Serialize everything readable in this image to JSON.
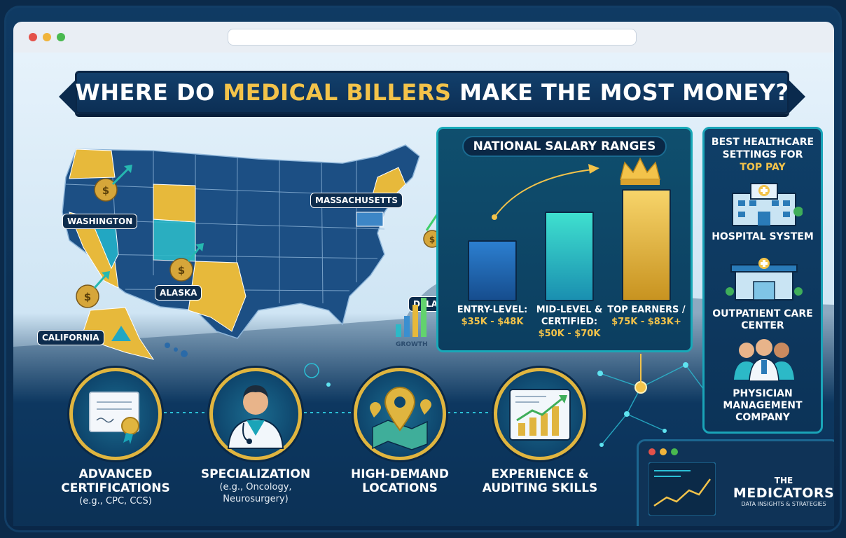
{
  "title": {
    "part1": "WHERE DO ",
    "highlight": "MEDICAL BILLERS",
    "part2": " MAKE THE MOST MONEY?"
  },
  "map": {
    "labels": {
      "washington": "WASHINGTON",
      "california": "CALIFORNIA",
      "alaska": "ALASKA",
      "massachusetts": "MASSACHUSETTS",
      "delaware": "DELAWARE"
    },
    "growth_label": "GROWTH"
  },
  "salary": {
    "title": "NATIONAL SALARY RANGES",
    "tiers": [
      {
        "label": "ENTRY-LEVEL:",
        "range": "$35K - $48K",
        "level": 0.38
      },
      {
        "label": "MID-LEVEL & CERTIFIED:",
        "range": "$50K - $70K",
        "level": 0.56
      },
      {
        "label": "TOP EARNERS /",
        "range": "$75K - $83K+",
        "level": 0.7
      }
    ]
  },
  "settings": {
    "title": "BEST HEALTHCARE SETTINGS FOR",
    "title_highlight": "TOP PAY",
    "items": [
      {
        "label": "HOSPITAL SYSTEM",
        "icon": "hospital-icon"
      },
      {
        "label": "OUTPATIENT CARE CENTER",
        "icon": "clinic-icon"
      },
      {
        "label": "PHYSICIAN MANAGEMENT COMPANY",
        "icon": "physicians-icon"
      }
    ]
  },
  "factors": [
    {
      "title": "ADVANCED CERTIFICATIONS",
      "sub": "(e.g., CPC, CCS)",
      "icon": "certificate-icon"
    },
    {
      "title": "SPECIALIZATION",
      "sub": "(e.g., Oncology, Neurosurgery)",
      "icon": "doctor-icon"
    },
    {
      "title": "HIGH-DEMAND LOCATIONS",
      "sub": "",
      "icon": "location-pin-icon"
    },
    {
      "title": "EXPERIENCE & AUDITING SKILLS",
      "sub": "",
      "icon": "growth-chart-icon"
    }
  ],
  "brand": {
    "the": "THE",
    "name": "MEDICATORS",
    "tagline": "DATA INSIGHTS & STRATEGIES"
  },
  "colors": {
    "navy": "#0c2f55",
    "gold": "#f3c34a",
    "teal": "#1aa4b8"
  }
}
